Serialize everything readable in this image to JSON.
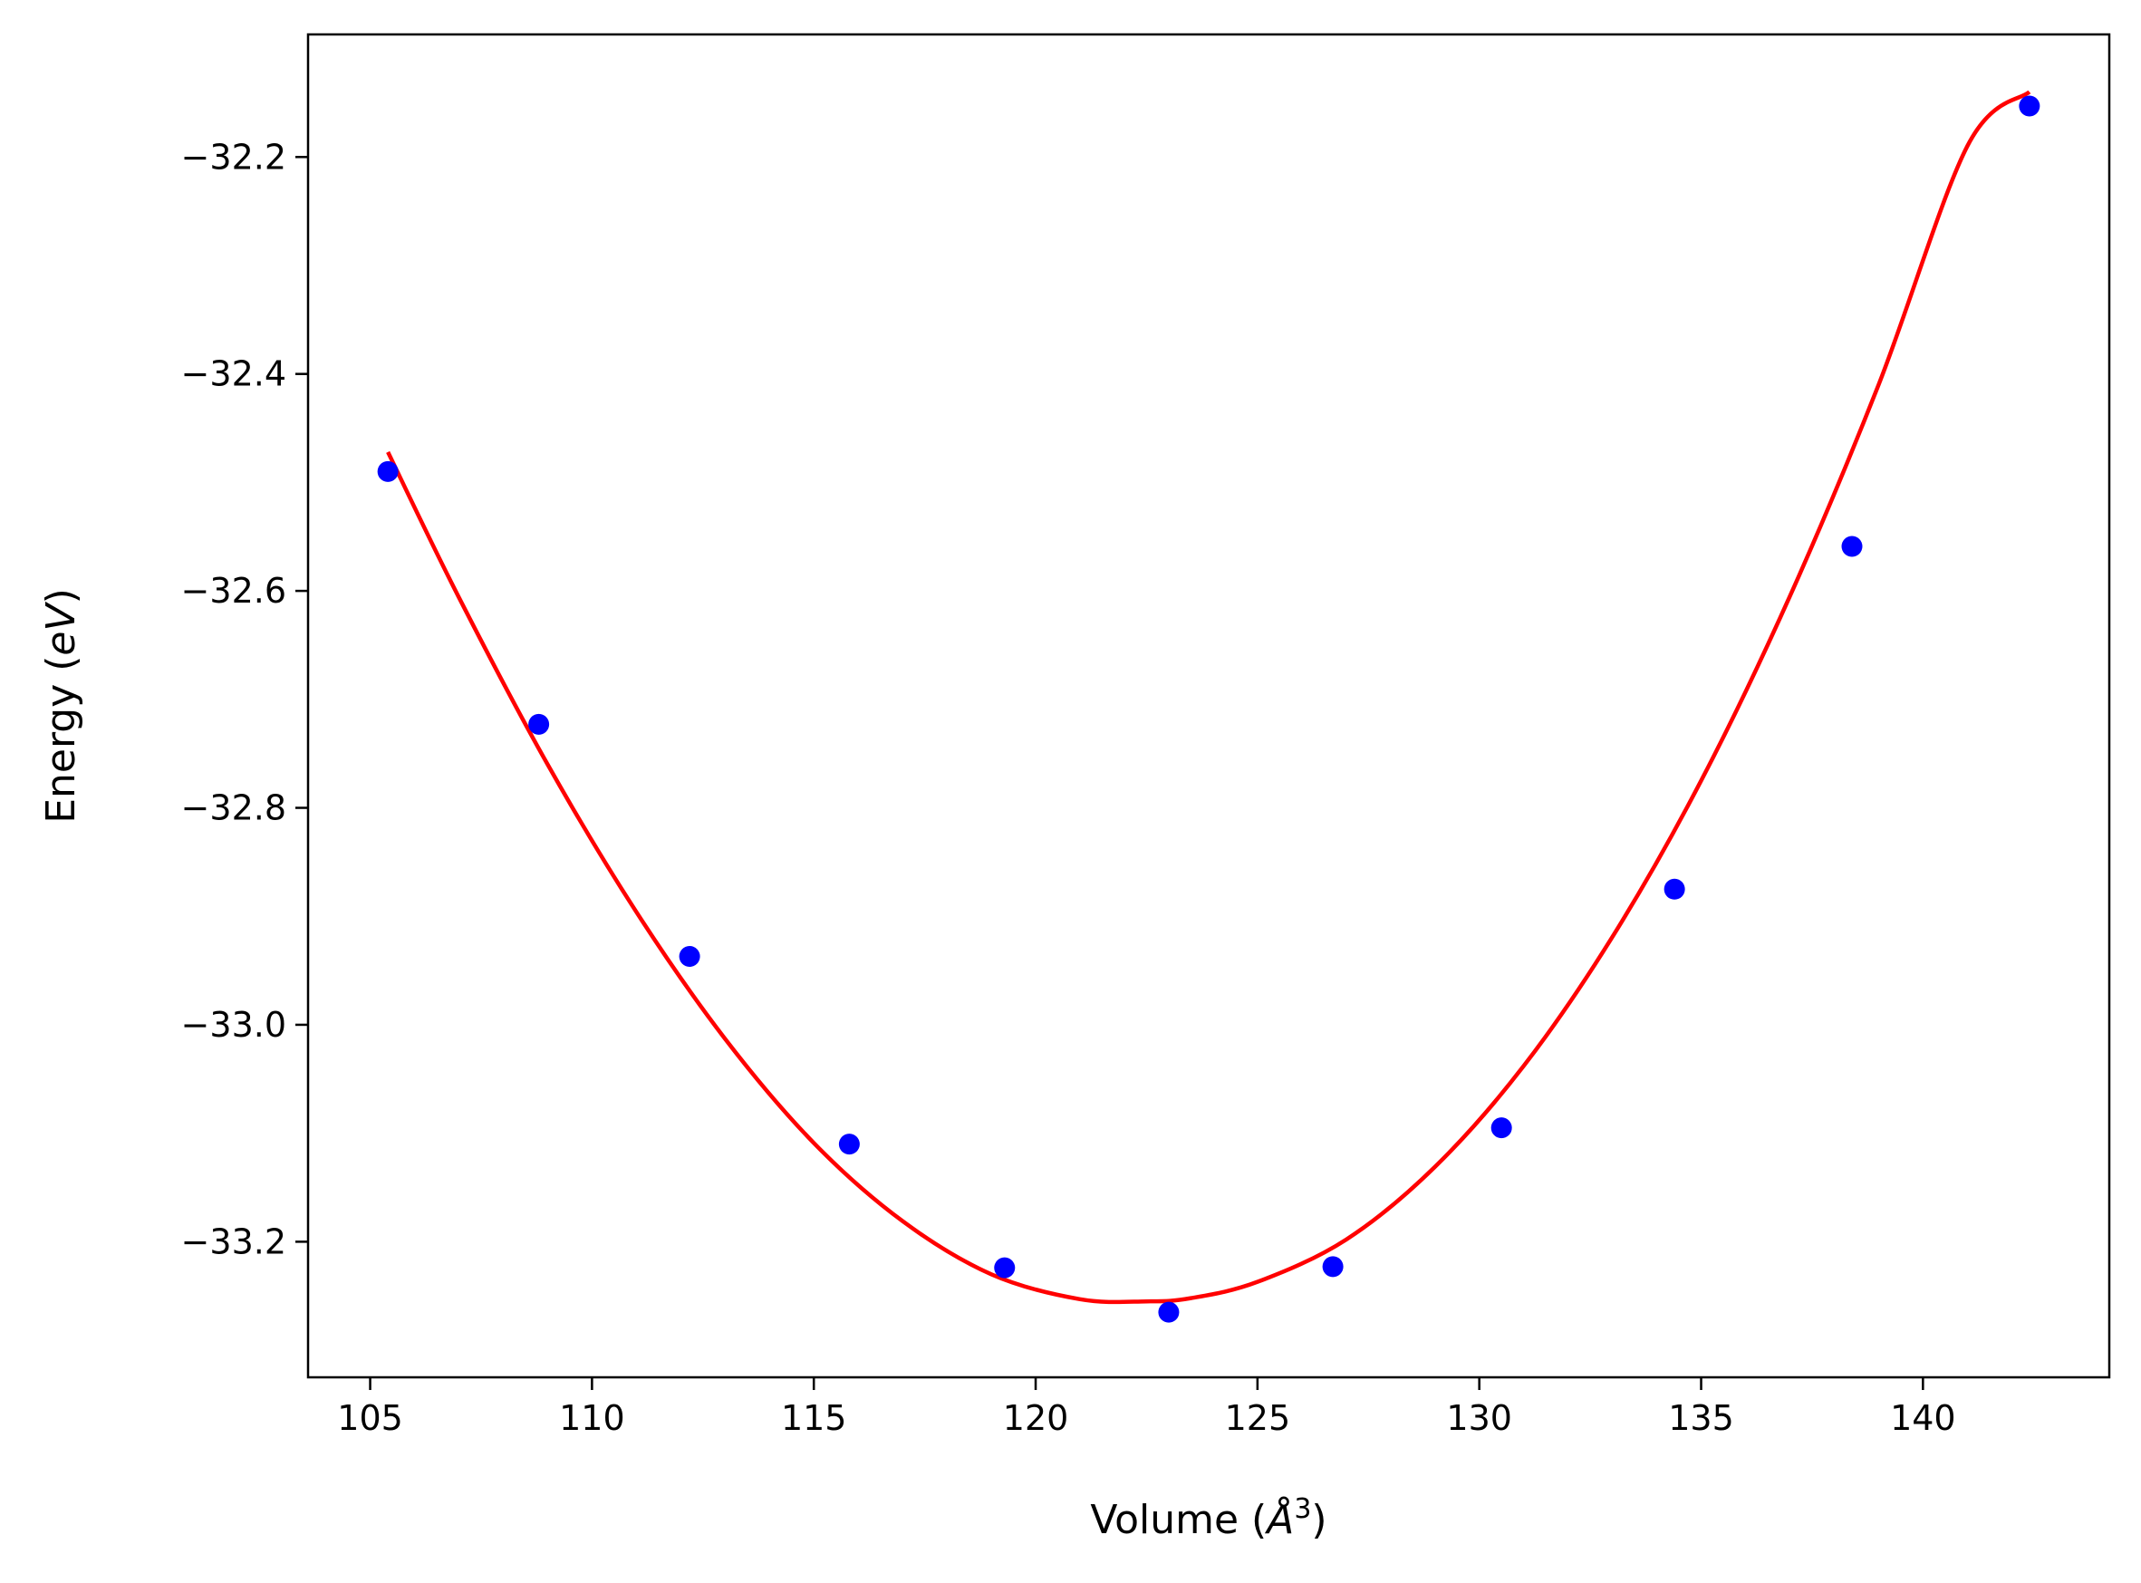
{
  "chart_data": {
    "type": "scatter",
    "xlabel": {
      "prefix": "Volume (",
      "symbol": "Å",
      "sup": "3",
      "suffix": ")"
    },
    "ylabel": {
      "prefix": "Energy (",
      "unit": "eV",
      "suffix": ")"
    },
    "xlim": [
      103.6,
      144.2
    ],
    "ylim": [
      -33.325,
      -32.087
    ],
    "xticks": [
      105,
      110,
      115,
      120,
      125,
      130,
      135,
      140
    ],
    "yticks": [
      -33.2,
      -33.0,
      -32.8,
      -32.6,
      -32.4,
      -32.2
    ],
    "xtick_labels": [
      "105",
      "110",
      "115",
      "120",
      "125",
      "130",
      "135",
      "140"
    ],
    "ytick_labels": [
      "−33.2",
      "−33.0",
      "−32.8",
      "−32.6",
      "−32.4",
      "−32.2"
    ],
    "grid": false,
    "series": [
      {
        "kind": "points",
        "color": "#0000ff",
        "x": [
          105.4,
          108.8,
          112.2,
          115.8,
          119.3,
          123.0,
          126.7,
          130.5,
          134.4,
          138.4,
          142.4
        ],
        "y": [
          -32.49,
          -32.723,
          -32.937,
          -33.11,
          -33.224,
          -33.265,
          -33.223,
          -33.095,
          -32.875,
          -32.559,
          -32.153
        ]
      },
      {
        "kind": "fit-curve",
        "color": "#ff0000",
        "x": [
          105.4,
          107.0,
          109.0,
          111.0,
          113.0,
          115.0,
          117.0,
          119.0,
          121.0,
          122.5,
          123.5,
          125.0,
          127.0,
          129.0,
          131.0,
          133.0,
          135.0,
          137.0,
          139.0,
          141.0,
          142.4
        ],
        "y": [
          -32.472,
          -32.606,
          -32.76,
          -32.896,
          -33.013,
          -33.109,
          -33.181,
          -33.23,
          -33.253,
          -33.255,
          -33.252,
          -33.237,
          -33.198,
          -33.131,
          -33.038,
          -32.919,
          -32.775,
          -32.605,
          -32.41,
          -32.19,
          -32.14
        ]
      }
    ]
  }
}
